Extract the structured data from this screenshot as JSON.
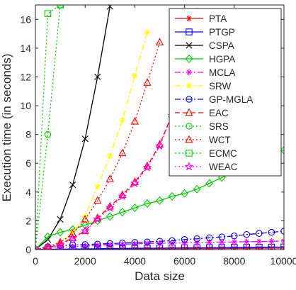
{
  "chart_data": {
    "type": "line",
    "xlabel": "Data size",
    "ylabel": "Execution time (in seconds)",
    "xlim": [
      0,
      10000
    ],
    "ylim": [
      0,
      17
    ],
    "x_ticks": [
      0,
      2000,
      4000,
      6000,
      8000,
      10000
    ],
    "y_ticks": [
      0,
      2,
      4,
      6,
      8,
      10,
      12,
      14,
      16
    ],
    "grid": false,
    "legend_position": "top-right",
    "series": [
      {
        "name": "PTA",
        "color": "#ff0000",
        "line": "solid",
        "marker": "asterisk",
        "x": [
          0,
          500,
          1000,
          1500,
          2000,
          2500,
          3000,
          3500,
          4000,
          4500,
          5000,
          5500,
          6000,
          6500,
          7000,
          7500,
          8000,
          8500,
          9000,
          9500,
          10000
        ],
        "y": [
          0,
          0.01,
          0.01,
          0.02,
          0.02,
          0.03,
          0.03,
          0.04,
          0.04,
          0.05,
          0.05,
          0.06,
          0.06,
          0.07,
          0.07,
          0.08,
          0.08,
          0.09,
          0.09,
          0.1,
          0.1
        ]
      },
      {
        "name": "PTGP",
        "color": "#0000ff",
        "line": "solid",
        "marker": "square",
        "x": [
          0,
          500,
          1000,
          1500,
          2000,
          2500,
          3000,
          3500,
          4000,
          4500,
          5000,
          5500,
          6000,
          6500,
          7000,
          7500,
          8000,
          8500,
          9000,
          9500,
          10000
        ],
        "y": [
          0,
          0.02,
          0.03,
          0.04,
          0.05,
          0.06,
          0.07,
          0.08,
          0.09,
          0.1,
          0.1,
          0.11,
          0.12,
          0.13,
          0.13,
          0.14,
          0.15,
          0.15,
          0.16,
          0.17,
          0.18
        ]
      },
      {
        "name": "CSPA",
        "color": "#000000",
        "line": "solid",
        "marker": "x",
        "x": [
          0,
          500,
          1000,
          1500,
          2000,
          2500,
          3000
        ],
        "y": [
          0,
          0.7,
          2.1,
          4.5,
          7.7,
          12.0,
          16.9
        ]
      },
      {
        "name": "HGPA",
        "color": "#00cc00",
        "line": "solid",
        "marker": "diamond",
        "x": [
          0,
          500,
          1000,
          1500,
          2000,
          2500,
          3000,
          3500,
          4000,
          4500,
          5000,
          5500,
          6000,
          6500,
          7000,
          7500,
          8000,
          8500,
          9000,
          9500,
          10000
        ],
        "y": [
          0,
          0.9,
          1.2,
          1.4,
          1.7,
          2.0,
          2.3,
          2.6,
          2.9,
          3.2,
          3.4,
          3.7,
          3.9,
          4.2,
          4.6,
          5.0,
          5.4,
          5.8,
          6.2,
          6.6,
          6.9
        ]
      },
      {
        "name": "MCLA",
        "color": "#ff00ff",
        "line": "dashdot",
        "marker": "asterisk",
        "x": [
          0,
          500,
          1000,
          1500,
          2000,
          2500,
          3000,
          3500,
          4000,
          4500,
          5000,
          5500,
          6000,
          6500,
          7000,
          7500,
          8000,
          8500,
          9000,
          9500,
          10000
        ],
        "y": [
          0,
          0.08,
          0.15,
          0.2,
          0.25,
          0.3,
          0.34,
          0.37,
          0.4,
          0.42,
          0.44,
          0.45,
          0.47,
          0.49,
          0.5,
          0.52,
          0.53,
          0.55,
          0.56,
          0.58,
          0.6
        ]
      },
      {
        "name": "SRW",
        "color": "#ffff00",
        "line": "dashdot",
        "marker": "asterisk",
        "x": [
          0,
          500,
          1000,
          1500,
          2000,
          2500,
          3000,
          3500,
          4000,
          4500
        ],
        "y": [
          0,
          0.2,
          0.5,
          1.2,
          2.3,
          4.4,
          6.5,
          9.0,
          12.1,
          15.1
        ]
      },
      {
        "name": "GP-MGLA",
        "color": "#0000ff",
        "line": "dashdot",
        "marker": "circle",
        "x": [
          0,
          500,
          1000,
          1500,
          2000,
          2500,
          3000,
          3500,
          4000,
          4500,
          5000,
          5500,
          6000,
          6500,
          7000,
          7500,
          8000,
          8500,
          9000,
          9500,
          10000
        ],
        "y": [
          0,
          0.2,
          0.28,
          0.32,
          0.35,
          0.38,
          0.42,
          0.45,
          0.5,
          0.53,
          0.58,
          0.62,
          0.7,
          0.75,
          0.82,
          0.88,
          0.95,
          1.05,
          1.12,
          1.2,
          1.28
        ]
      },
      {
        "name": "EAC",
        "color": "#ff0000",
        "line": "dashed",
        "marker": "triangle",
        "x": [
          0,
          500,
          1000,
          1500,
          2000,
          2500,
          3000,
          3500,
          4000,
          4500,
          5000,
          5500,
          6000,
          6500
        ],
        "y": [
          0,
          0.1,
          0.4,
          0.8,
          1.3,
          2.2,
          3.0,
          3.8,
          4.7,
          5.8,
          7.3,
          9.4,
          11.5,
          16.5
        ]
      },
      {
        "name": "SRS",
        "color": "#00cc00",
        "line": "dotted",
        "marker": "circle",
        "x": [
          0,
          500,
          1000
        ],
        "y": [
          0,
          8.0,
          17
        ]
      },
      {
        "name": "WCT",
        "color": "#ff0000",
        "line": "dotted",
        "marker": "triangle",
        "x": [
          0,
          500,
          1000,
          1500,
          2000,
          2500,
          3000,
          3500,
          4000,
          4500,
          5000
        ],
        "y": [
          0,
          0.2,
          0.5,
          1.1,
          2.1,
          3.4,
          4.9,
          6.7,
          8.9,
          11.6,
          14.4
        ]
      },
      {
        "name": "ECMC",
        "color": "#00cc00",
        "line": "dotted",
        "marker": "square",
        "x": [
          0,
          500,
          1000
        ],
        "y": [
          0,
          16.4,
          17
        ]
      },
      {
        "name": "WEAC",
        "color": "#ff00ff",
        "line": "dotted",
        "marker": "star",
        "x": [
          0,
          500,
          1000,
          1500,
          2000,
          2500,
          3000,
          3500,
          4000,
          4500,
          5000,
          5500,
          6000,
          6500
        ],
        "y": [
          0,
          0.1,
          0.35,
          0.75,
          1.3,
          2.1,
          2.9,
          3.7,
          4.6,
          5.7,
          7.2,
          9.3,
          11.4,
          16.5
        ]
      }
    ]
  }
}
